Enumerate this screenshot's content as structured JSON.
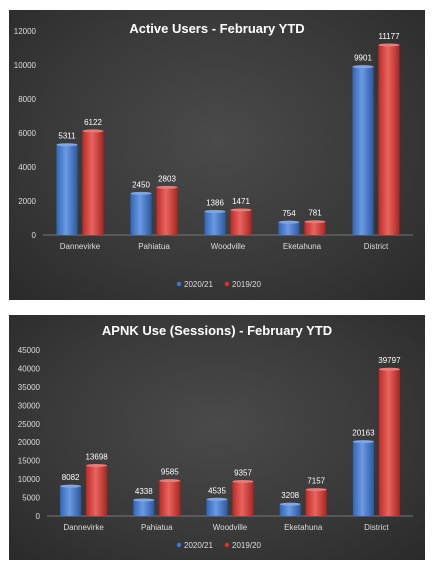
{
  "chart_data": [
    {
      "type": "bar",
      "title": "Active Users - February YTD",
      "categories": [
        "Dannevirke",
        "Pahiatua",
        "Woodville",
        "Eketahuna",
        "District"
      ],
      "series": [
        {
          "name": "2020/21",
          "values": [
            5311,
            2450,
            1386,
            754,
            9901
          ],
          "color": "#3a78d8"
        },
        {
          "name": "2019/20",
          "values": [
            6122,
            2803,
            1471,
            781,
            11177
          ],
          "color": "#e0312b"
        }
      ],
      "yticks": [
        "0",
        "2000",
        "4000",
        "6000",
        "8000",
        "10000",
        "12000"
      ],
      "ylim": [
        0,
        12000
      ],
      "legend_position": "bottom",
      "grid": false
    },
    {
      "type": "bar",
      "title": "APNK Use (Sessions) - February YTD",
      "categories": [
        "Dannevirke",
        "Pahiatua",
        "Woodville",
        "Eketahuna",
        "District"
      ],
      "series": [
        {
          "name": "2020/21",
          "values": [
            8082,
            4338,
            4535,
            3208,
            20163
          ],
          "color": "#3a78d8"
        },
        {
          "name": "2019/20",
          "values": [
            13698,
            9585,
            9357,
            7157,
            39797
          ],
          "color": "#e0312b"
        }
      ],
      "yticks": [
        "0",
        "5000",
        "10000",
        "15000",
        "20000",
        "25000",
        "30000",
        "35000",
        "40000",
        "45000"
      ],
      "ylim": [
        0,
        45000
      ],
      "legend_position": "bottom",
      "grid": false
    }
  ]
}
